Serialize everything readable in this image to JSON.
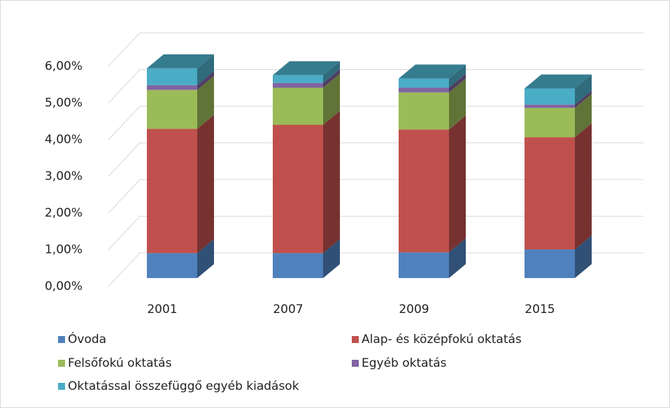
{
  "chart_data": {
    "type": "bar3d_stacked",
    "categories": [
      "2001",
      "2007",
      "2009",
      "2015"
    ],
    "series": [
      {
        "name": "Óvoda",
        "color": "#4f81bd",
        "values": [
          0.68,
          0.68,
          0.7,
          0.78
        ]
      },
      {
        "name": "Alap- és középfokú oktatás",
        "color": "#c0504d",
        "values": [
          3.39,
          3.5,
          3.35,
          3.06
        ]
      },
      {
        "name": "Felsőfokú oktatás",
        "color": "#9bbb59",
        "values": [
          1.06,
          1.01,
          1.01,
          0.8
        ]
      },
      {
        "name": "Egyéb oktatás",
        "color": "#8064a2",
        "values": [
          0.13,
          0.13,
          0.13,
          0.09
        ]
      },
      {
        "name": "Oktatással összefüggő egyéb kiadások",
        "color": "#4bacc6",
        "values": [
          0.46,
          0.21,
          0.25,
          0.44
        ]
      }
    ],
    "ylim": [
      0,
      6
    ],
    "yticks": [
      {
        "value": 0,
        "label": "0,00%"
      },
      {
        "value": 1,
        "label": "1,00%"
      },
      {
        "value": 2,
        "label": "2,00%"
      },
      {
        "value": 3,
        "label": "3,00%"
      },
      {
        "value": 4,
        "label": "4,00%"
      },
      {
        "value": 5,
        "label": "5,00%"
      },
      {
        "value": 6,
        "label": "6,00%"
      }
    ],
    "grid": true
  }
}
